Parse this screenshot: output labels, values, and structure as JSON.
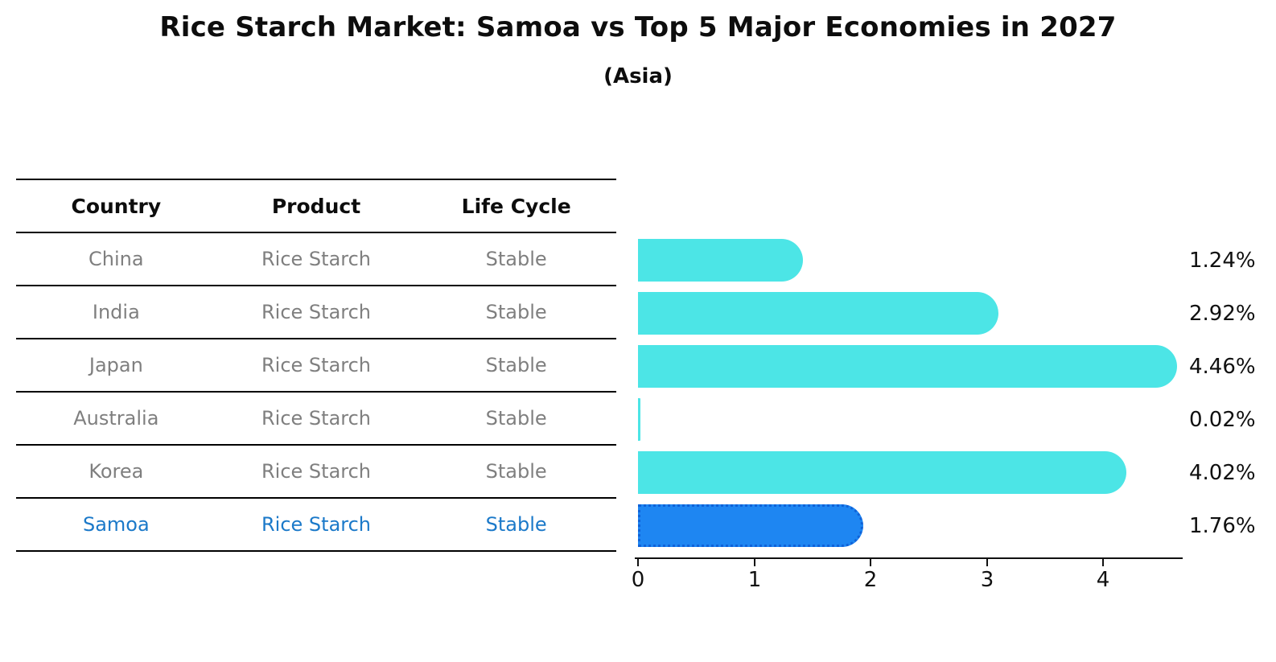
{
  "header": {
    "title": "Rice Starch Market: Samoa vs Top 5 Major Economies in 2027",
    "subtitle": "(Asia)"
  },
  "table": {
    "headers": [
      "Country",
      "Product",
      "Life Cycle"
    ],
    "rows": [
      {
        "country": "China",
        "product": "Rice Starch",
        "life_cycle": "Stable",
        "highlighted": false
      },
      {
        "country": "India",
        "product": "Rice Starch",
        "life_cycle": "Stable",
        "highlighted": false
      },
      {
        "country": "Japan",
        "product": "Rice Starch",
        "life_cycle": "Stable",
        "highlighted": false
      },
      {
        "country": "Australia",
        "product": "Rice Starch",
        "life_cycle": "Stable",
        "highlighted": false
      },
      {
        "country": "Korea",
        "product": "Rice Starch",
        "life_cycle": "Stable",
        "highlighted": false
      },
      {
        "country": "Samoa",
        "product": "Rice Starch",
        "life_cycle": "Stable",
        "highlighted": true
      }
    ]
  },
  "chart_data": {
    "type": "bar",
    "orientation": "horizontal",
    "title": "Rice Starch Market: Samoa vs Top 5 Major Economies in 2027",
    "subtitle": "(Asia)",
    "categories": [
      "China",
      "India",
      "Japan",
      "Australia",
      "Korea",
      "Samoa"
    ],
    "values": [
      1.24,
      2.92,
      4.46,
      0.02,
      4.02,
      1.76
    ],
    "labels": [
      "1.24%",
      "2.92%",
      "4.46%",
      "0.02%",
      "4.02%",
      "1.76%"
    ],
    "unit": "%",
    "xticks": [
      "0",
      "1",
      "2",
      "3",
      "4"
    ],
    "xlim": [
      0,
      4.7
    ],
    "grid": false,
    "legend": false,
    "highlight_index": 5,
    "bar_color": "#4ce5e6",
    "highlight_bar_color": "#1e86f2",
    "highlight_border_color": "#0f62d8"
  },
  "colors": {
    "text": "#0d0d0d",
    "muted_text": "#7f7f7f",
    "highlight_text": "#1b79c9",
    "line": "#000000"
  }
}
